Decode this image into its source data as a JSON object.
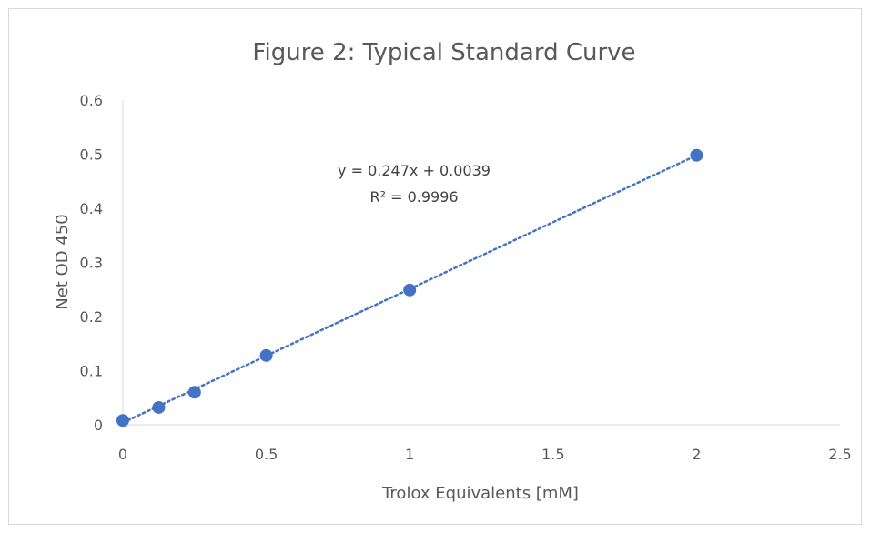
{
  "chart_data": {
    "type": "scatter",
    "title": "Figure 2: Typical Standard Curve",
    "xlabel": "Trolox Equivalents [mM]",
    "ylabel": "Net OD 450",
    "xlim": [
      0,
      2.5
    ],
    "ylim": [
      0,
      0.6
    ],
    "x_ticks": [
      "0",
      "0.5",
      "1",
      "1.5",
      "2",
      "2.5"
    ],
    "y_ticks": [
      "0",
      "0.1",
      "0.2",
      "0.3",
      "0.4",
      "0.5",
      "0.6"
    ],
    "grid": false,
    "legend": "none",
    "marker_color": "#4472c4",
    "series": [
      {
        "x": [
          0,
          0.125,
          0.25,
          0.5,
          1,
          2
        ],
        "y": [
          0.008,
          0.032,
          0.06,
          0.128,
          0.249,
          0.498
        ]
      }
    ],
    "trendline": {
      "style": "dotted",
      "slope": 0.247,
      "intercept": 0.0039,
      "equation": "y = 0.247x + 0.0039",
      "r_squared": "R² = 0.9996"
    }
  }
}
